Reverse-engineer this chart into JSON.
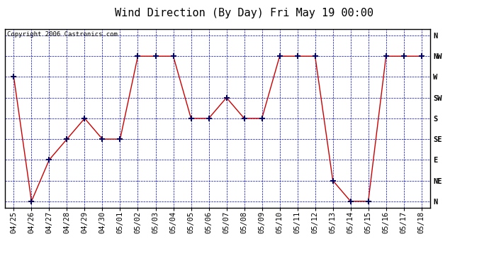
{
  "title": "Wind Direction (By Day) Fri May 19 00:00",
  "copyright_text": "Copyright 2006 Castronics.com",
  "x_labels": [
    "04/25",
    "04/26",
    "04/27",
    "04/28",
    "04/29",
    "04/30",
    "05/01",
    "05/02",
    "05/03",
    "05/04",
    "05/05",
    "05/06",
    "05/07",
    "05/08",
    "05/09",
    "05/10",
    "05/11",
    "05/12",
    "05/13",
    "05/14",
    "05/15",
    "05/16",
    "05/17",
    "05/18"
  ],
  "dir_labels": [
    "N",
    "NE",
    "E",
    "SE",
    "S",
    "SW",
    "W",
    "NW",
    "N"
  ],
  "data_points": [
    6,
    0,
    2,
    3,
    4,
    3,
    3,
    7,
    7,
    7,
    4,
    4,
    5,
    4,
    4,
    7,
    7,
    7,
    1,
    0,
    0,
    7,
    7,
    7
  ],
  "line_color": "#cc0000",
  "marker_color": "#000066",
  "bg_color": "#ffffff",
  "grid_color": "#0000cc",
  "border_color": "#000000",
  "title_fontsize": 11,
  "copyright_fontsize": 6.5,
  "tick_label_fontsize": 7.5,
  "fig_width": 6.9,
  "fig_height": 3.75,
  "dpi": 100
}
